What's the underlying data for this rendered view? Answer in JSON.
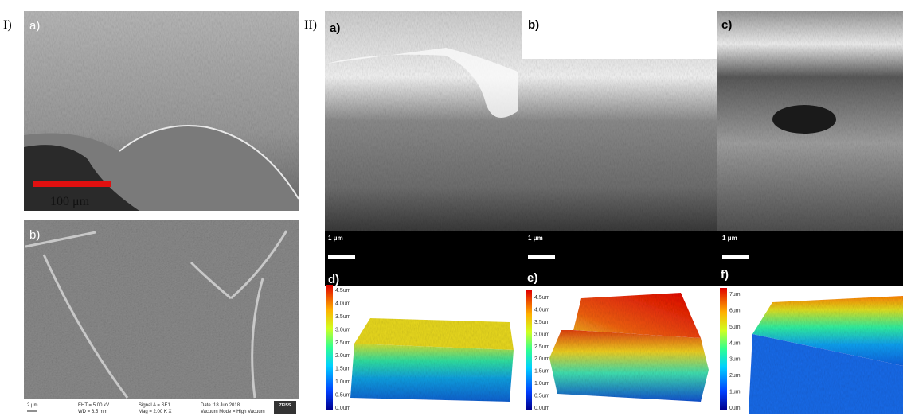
{
  "part_labels": [
    "I)",
    "II)"
  ],
  "part1": {
    "panel_labels": [
      "a)",
      "b)"
    ],
    "scale_bar": "100 μm",
    "sem_info": {
      "scale": "2 μm",
      "eht": "EHT = 5.00 kV",
      "wd": "WD = 6.5 mm",
      "signal": "Signal A = SE1",
      "mag": "Mag = 2.00 K X",
      "date": "Date :18 Jun 2018",
      "vacuum": "Vacuum Mode = High Vacuum",
      "brand": "ZEISS"
    }
  },
  "part2": {
    "panel_labels": [
      "a)",
      "b)",
      "c)",
      "d)",
      "e)",
      "f)"
    ],
    "scale_bars": [
      "1 μm",
      "1 μm",
      "1 μm"
    ],
    "colorbars": [
      [
        "4.5um",
        "4.0um",
        "3.5um",
        "3.0um",
        "2.5um",
        "2.0um",
        "1.5um",
        "1.0um",
        "0.5um",
        "0.0um"
      ],
      [
        "4.5um",
        "4.0um",
        "3.5um",
        "3.0um",
        "2.5um",
        "2.0um",
        "1.5um",
        "1.0um",
        "0.5um",
        "0.0um"
      ],
      [
        "7um",
        "6um",
        "5um",
        "4um",
        "3um",
        "2um",
        "1um",
        "0um"
      ]
    ]
  }
}
